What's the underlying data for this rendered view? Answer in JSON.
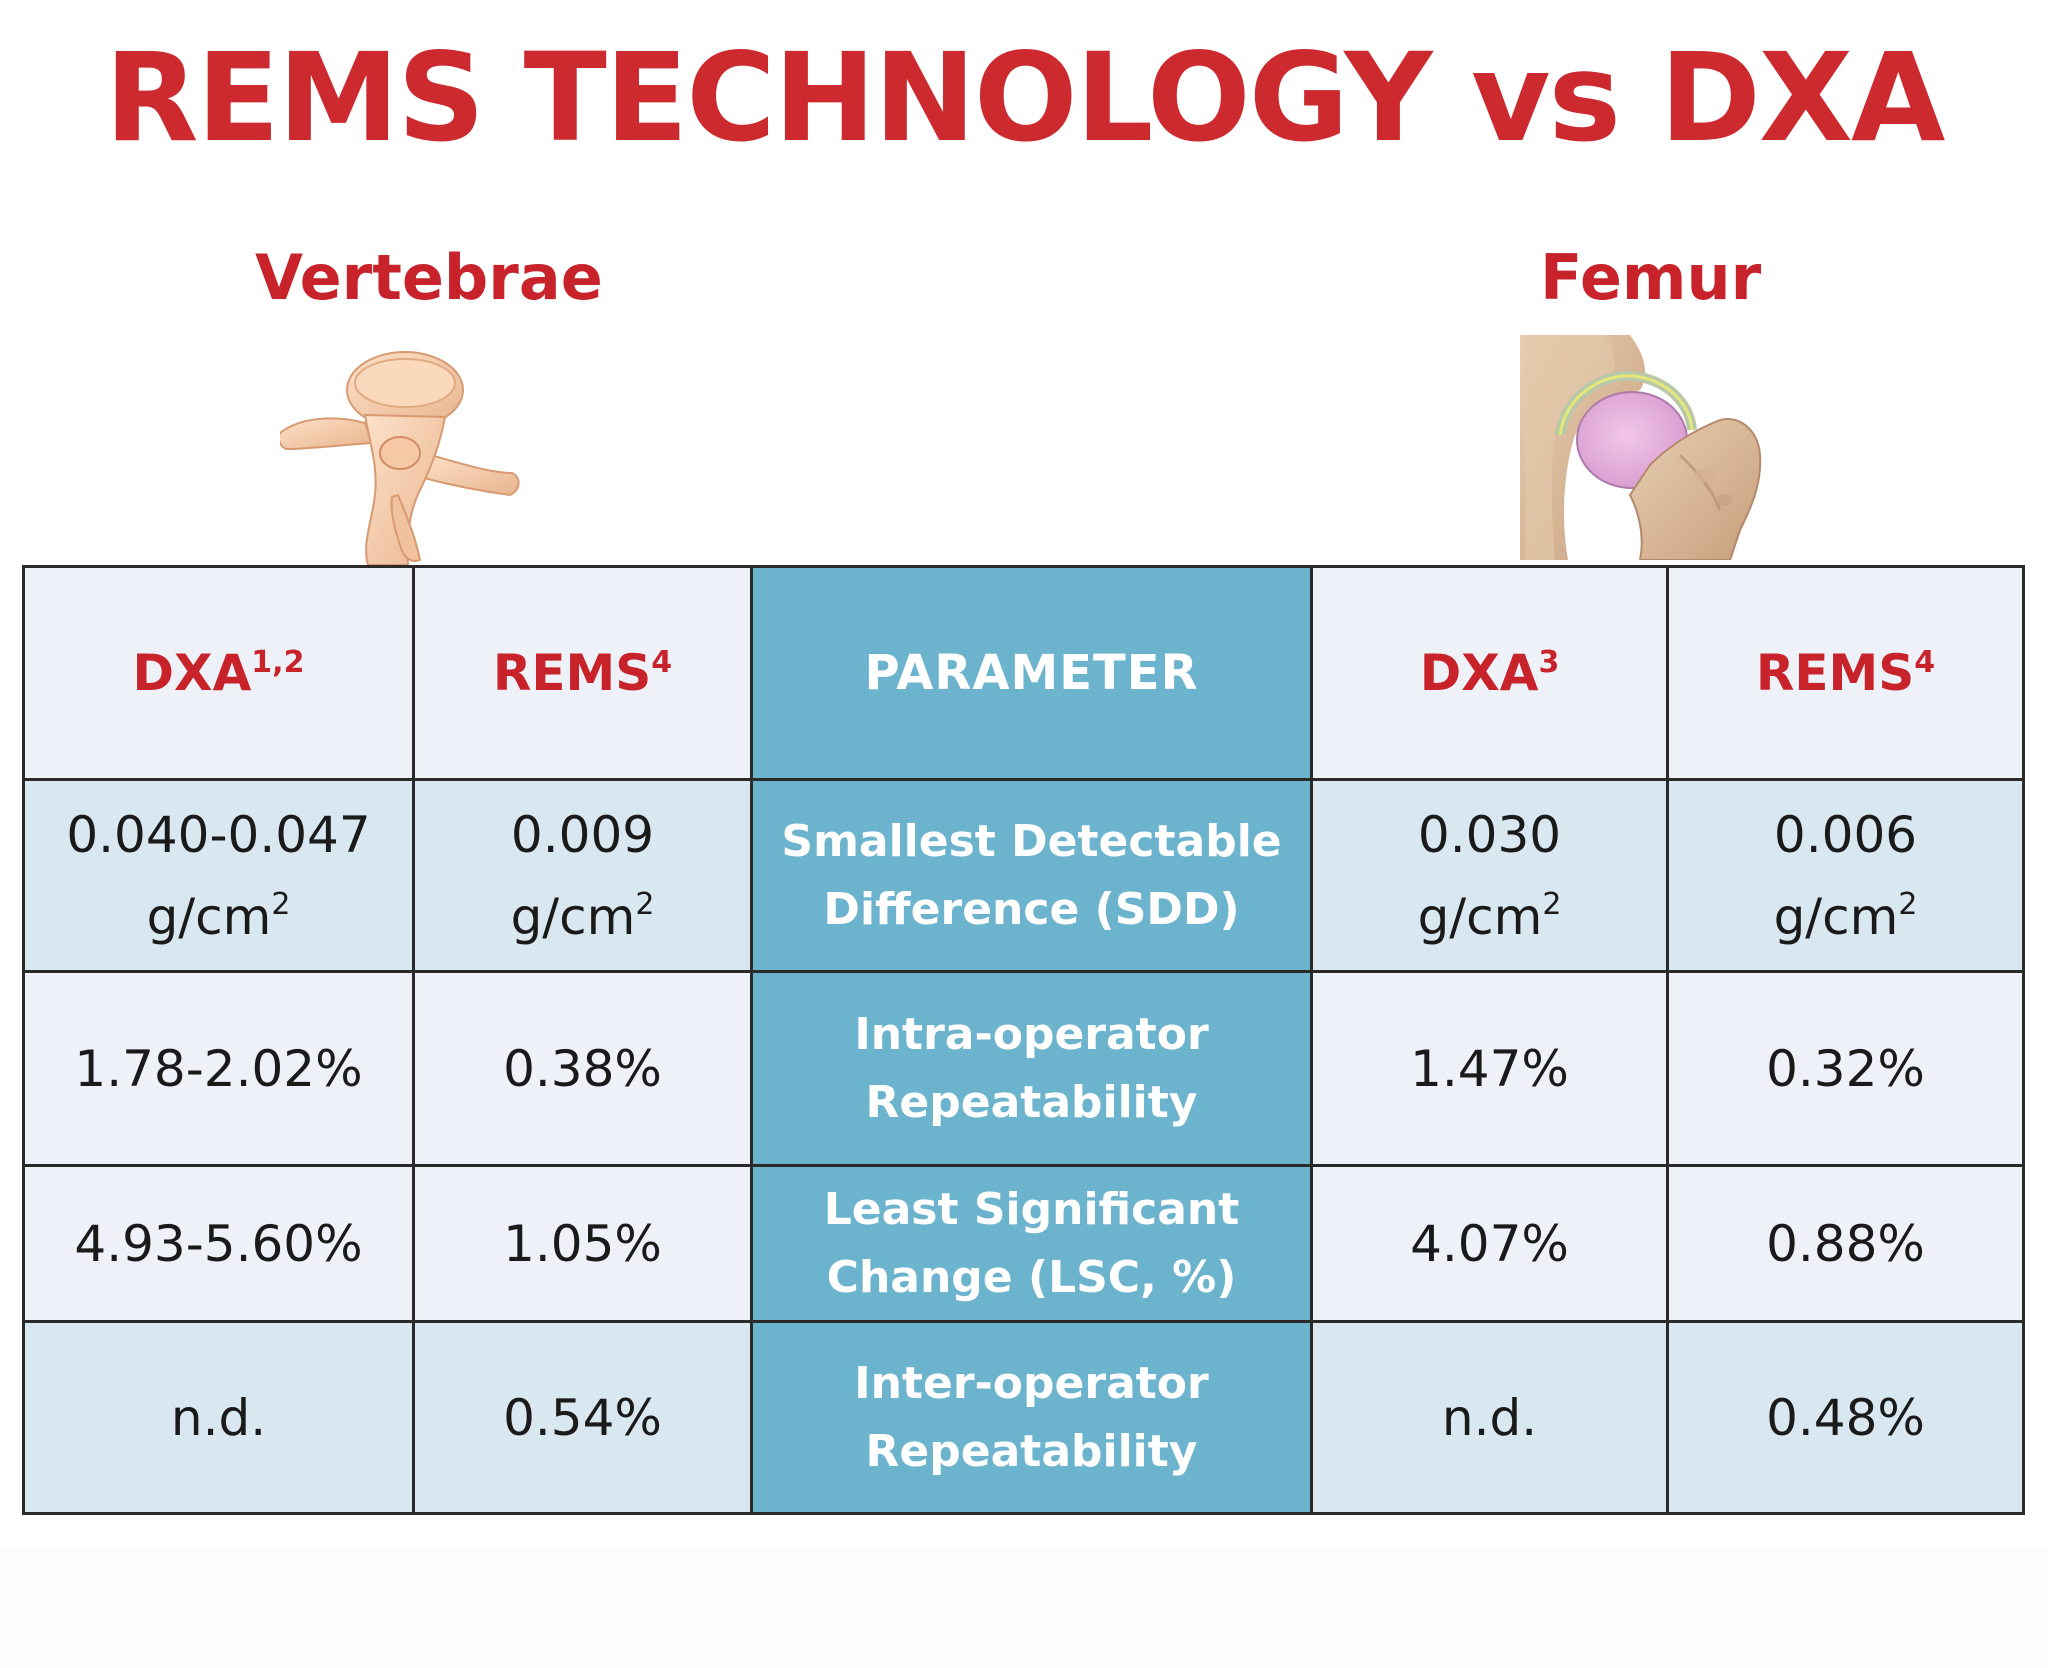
{
  "title": "REMS TECHNOLOGY vs DXA",
  "sections": {
    "left": "Vertebrae",
    "right": "Femur"
  },
  "illustrations": {
    "left": "vertebra-icon",
    "right": "femur-hip-icon"
  },
  "colors": {
    "title": "#cc2a2e",
    "header_text": "#c8232b",
    "parameter_column": "#6cb3cd",
    "row_light": "#eef2f8",
    "row_blue": "#d9e7f1"
  },
  "table": {
    "headers": {
      "dxa_vert": "DXA",
      "dxa_vert_ref": "1,2",
      "rems_vert": "REMS",
      "rems_vert_ref": "4",
      "parameter": "PARAMETER",
      "dxa_femur": "DXA",
      "dxa_femur_ref": "3",
      "rems_femur": "REMS",
      "rems_femur_ref": "4"
    },
    "rows": [
      {
        "dxa_vert": "0.040-0.047",
        "rems_vert": "0.009",
        "parameter_line1": "Smallest Detectable",
        "parameter_line2": "Difference (SDD)",
        "dxa_femur": "0.030",
        "rems_femur": "0.006",
        "unit": "g/cm",
        "unit_exp": "2"
      },
      {
        "dxa_vert": "1.78-2.02%",
        "rems_vert": "0.38%",
        "parameter_line1": "Intra-operator",
        "parameter_line2": "Repeatability",
        "dxa_femur": "1.47%",
        "rems_femur": "0.32%"
      },
      {
        "dxa_vert": "4.93-5.60%",
        "rems_vert": "1.05%",
        "parameter_line1": "Least Significant",
        "parameter_line2": "Change (LSC, %)",
        "dxa_femur": "4.07%",
        "rems_femur": "0.88%"
      },
      {
        "dxa_vert": "n.d.",
        "rems_vert": "0.54%",
        "parameter_line1": "Inter-operator",
        "parameter_line2": "Repeatability",
        "dxa_femur": "n.d.",
        "rems_femur": "0.48%"
      }
    ]
  }
}
